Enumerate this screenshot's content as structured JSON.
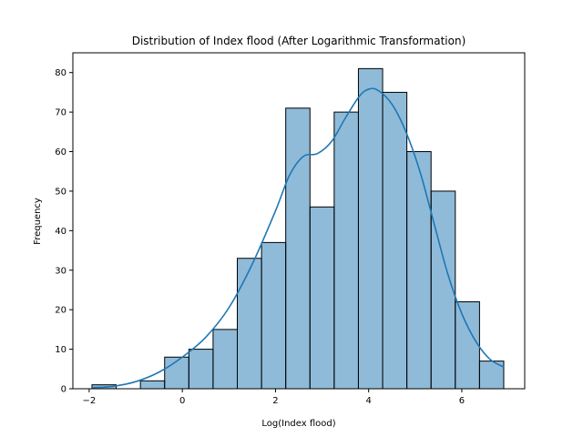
{
  "chart_data": {
    "type": "bar",
    "title": "Distribution of Index flood (After Logarithmic Transformation)",
    "xlabel": "Log(Index flood)",
    "ylabel": "Frequency",
    "xlim": [
      -2.35,
      7.35
    ],
    "ylim": [
      0,
      85
    ],
    "xticks": [
      -2,
      0,
      2,
      4,
      6
    ],
    "yticks": [
      0,
      10,
      20,
      30,
      40,
      50,
      60,
      70,
      80
    ],
    "bar_color": "#1f77b4",
    "kde_color": "#1f77b4",
    "bins": [
      {
        "x0": -1.94,
        "x1": -1.42,
        "count": 1
      },
      {
        "x0": -1.42,
        "x1": -0.9,
        "count": 0
      },
      {
        "x0": -0.9,
        "x1": -0.38,
        "count": 2
      },
      {
        "x0": -0.38,
        "x1": 0.14,
        "count": 8
      },
      {
        "x0": 0.14,
        "x1": 0.66,
        "count": 10
      },
      {
        "x0": 0.66,
        "x1": 1.18,
        "count": 15
      },
      {
        "x0": 1.18,
        "x1": 1.7,
        "count": 33
      },
      {
        "x0": 1.7,
        "x1": 2.22,
        "count": 37
      },
      {
        "x0": 2.22,
        "x1": 2.74,
        "count": 71
      },
      {
        "x0": 2.74,
        "x1": 3.26,
        "count": 46
      },
      {
        "x0": 3.26,
        "x1": 3.78,
        "count": 70
      },
      {
        "x0": 3.78,
        "x1": 4.3,
        "count": 81
      },
      {
        "x0": 4.3,
        "x1": 4.82,
        "count": 75
      },
      {
        "x0": 4.82,
        "x1": 5.34,
        "count": 60
      },
      {
        "x0": 5.34,
        "x1": 5.86,
        "count": 50
      },
      {
        "x0": 5.86,
        "x1": 6.38,
        "count": 22
      },
      {
        "x0": 6.38,
        "x1": 6.9,
        "count": 7
      }
    ],
    "kde": {
      "x": [
        -1.94,
        -1.5,
        -1.0,
        -0.5,
        0.0,
        0.5,
        1.0,
        1.5,
        2.0,
        2.3,
        2.6,
        2.9,
        3.2,
        3.5,
        3.8,
        4.0,
        4.2,
        4.5,
        4.8,
        5.1,
        5.4,
        5.7,
        6.0,
        6.3,
        6.6,
        6.9
      ],
      "y": [
        0.3,
        0.6,
        1.8,
        4.2,
        8.0,
        13.0,
        20.5,
        31.5,
        45.0,
        54.0,
        58.8,
        59.5,
        62.5,
        68.5,
        74.0,
        75.8,
        75.5,
        72.0,
        65.0,
        55.0,
        42.0,
        29.0,
        19.0,
        12.0,
        7.5,
        5.5
      ]
    }
  }
}
